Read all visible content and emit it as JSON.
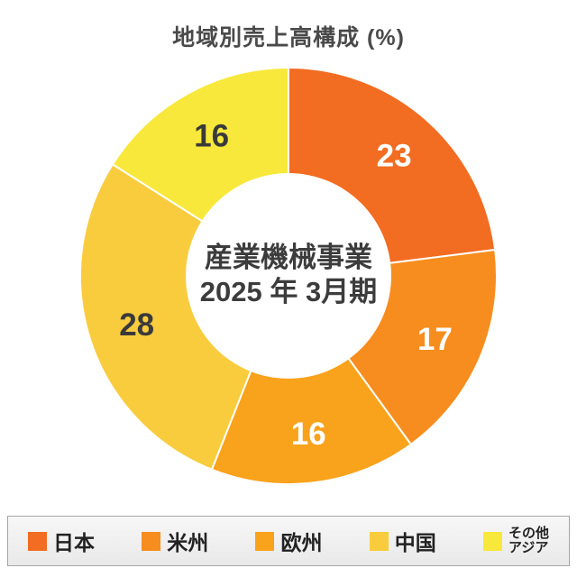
{
  "title": "地域別売上高構成 (%)",
  "center": {
    "line1": "産業機械事業",
    "line2": "2025 年 3月期"
  },
  "chart_data": {
    "type": "pie",
    "donut": true,
    "title": "地域別売上高構成 (%)",
    "categories": [
      "日本",
      "米州",
      "欧州",
      "中国",
      "その他アジア"
    ],
    "values": [
      23,
      17,
      16,
      28,
      16
    ],
    "unit": "%",
    "colors": [
      "#f26c21",
      "#f78d1e",
      "#f9a21b",
      "#f8cc3d",
      "#f8e83b"
    ],
    "value_label_colors": [
      "#ffffff",
      "#ffffff",
      "#ffffff",
      "#3a3a3a",
      "#3a3a3a"
    ],
    "start_angle": "top",
    "direction": "clockwise",
    "center_label": [
      "産業機械事業",
      "2025 年 3月期"
    ],
    "legend_position": "bottom"
  },
  "legend": {
    "items": [
      {
        "label": "日本",
        "color": "#f26c21"
      },
      {
        "label": "米州",
        "color": "#f78d1e"
      },
      {
        "label": "欧州",
        "color": "#f9a21b"
      },
      {
        "label": "中国",
        "color": "#f8cc3d"
      },
      {
        "label": "その他",
        "label2": "アジア",
        "color": "#f8e83b"
      }
    ]
  }
}
